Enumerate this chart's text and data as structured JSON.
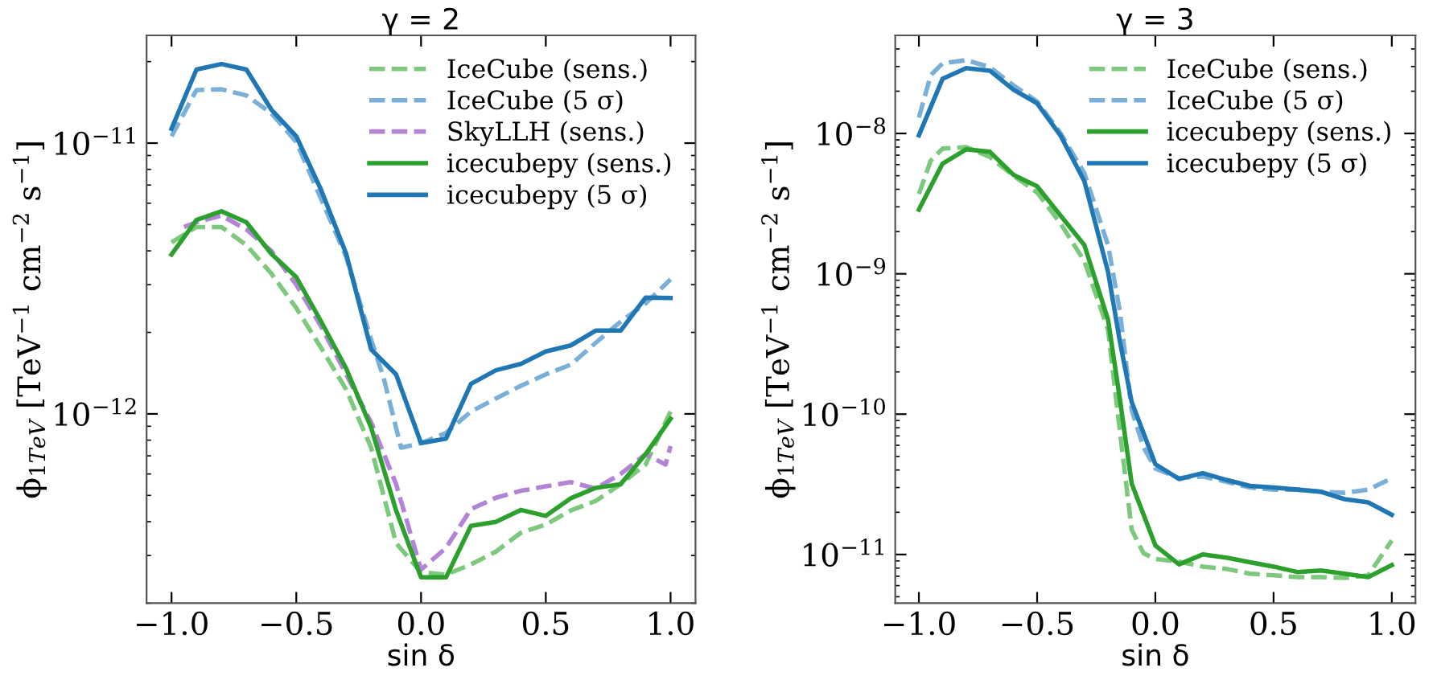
{
  "chart_data": [
    {
      "type": "line",
      "title": "γ = 2",
      "xlabel": "sin δ",
      "ylabel": "ϕ$_{1TeV}$ [TeV$^{−1}$ cm$^{−2}$ s$^{−1}$]",
      "log": "y",
      "legend": "top right",
      "grid": false,
      "xlim": [
        -1.1,
        1.1
      ],
      "ylim": [
        2e-13,
        2.5e-11
      ],
      "xticks": [
        {
          "value": -1.0,
          "label": "−1.0"
        },
        {
          "value": -0.5,
          "label": "−0.5"
        },
        {
          "value": 0.0,
          "label": "0.0"
        },
        {
          "value": 0.5,
          "label": "0.5"
        },
        {
          "value": 1.0,
          "label": "1.0"
        }
      ],
      "yticks": [
        {
          "value": 1e-12,
          "label": "10$^{−12}$"
        },
        {
          "value": 1e-11,
          "label": "10$^{−11}$"
        }
      ],
      "series": [
        {
          "name": "IceCube (sens.)",
          "color": "#7cc87c",
          "line_style": "dashed",
          "x": [
            -1.0,
            -0.9,
            -0.8,
            -0.7,
            -0.6,
            -0.5,
            -0.4,
            -0.3,
            -0.2,
            -0.1,
            0.0,
            0.1,
            0.2,
            0.3,
            0.4,
            0.5,
            0.6,
            0.7,
            0.8,
            0.9,
            1.0
          ],
          "values": [
            4.3e-12,
            4.9e-12,
            4.9e-12,
            4.2e-12,
            3.3e-12,
            2.46e-12,
            1.75e-12,
            1.23e-12,
            7.5e-13,
            3.33e-13,
            2.6e-13,
            2.55e-13,
            2.78e-13,
            3.1e-13,
            3.64e-13,
            3.9e-13,
            4.4e-13,
            4.77e-13,
            5.5e-13,
            6.5e-13,
            1.02e-12
          ]
        },
        {
          "name": "IceCube (5 σ)",
          "color": "#7ab0d8",
          "line_style": "dashed",
          "x": [
            -1.0,
            -0.9,
            -0.8,
            -0.7,
            -0.6,
            -0.5,
            -0.4,
            -0.3,
            -0.2,
            -0.15,
            -0.08,
            0.0,
            0.1,
            0.2,
            0.3,
            0.4,
            0.5,
            0.6,
            0.7,
            0.8,
            0.9,
            1.0
          ],
          "values": [
            1.06e-11,
            1.57e-11,
            1.58e-11,
            1.5e-11,
            1.29e-11,
            1.01e-11,
            6.2e-12,
            3.8e-12,
            1.88e-12,
            1.36e-12,
            7.5e-13,
            7.8e-13,
            8.5e-13,
            1.02e-12,
            1.14e-12,
            1.27e-12,
            1.4e-12,
            1.52e-12,
            1.83e-12,
            2.19e-12,
            2.56e-12,
            3.14e-12
          ]
        },
        {
          "name": "SkyLLH (sens.)",
          "color": "#b383d8",
          "line_style": "dashed",
          "x": [
            -0.95,
            -0.9,
            -0.8,
            -0.7,
            -0.6,
            -0.5,
            -0.4,
            -0.3,
            -0.2,
            -0.1,
            0.0,
            0.1,
            0.2,
            0.3,
            0.4,
            0.5,
            0.6,
            0.7,
            0.8,
            0.9,
            0.98,
            1.0
          ],
          "values": [
            4.9e-12,
            5.1e-12,
            5.4e-12,
            4.8e-12,
            4e-12,
            3e-12,
            2.1e-12,
            1.4e-12,
            9.3e-13,
            5.5e-13,
            2.66e-13,
            3.2e-13,
            4.45e-13,
            4.9e-13,
            5.2e-13,
            5.4e-13,
            5.6e-13,
            5.3e-13,
            6e-13,
            7.1e-13,
            6.5e-13,
            7.6e-13
          ]
        },
        {
          "name": "icecubepy (sens.)",
          "color": "#2ca02c",
          "line_style": "solid",
          "x": [
            -1.0,
            -0.9,
            -0.8,
            -0.7,
            -0.6,
            -0.5,
            -0.4,
            -0.3,
            -0.2,
            -0.1,
            0.0,
            0.1,
            0.2,
            0.3,
            0.4,
            0.5,
            0.6,
            0.7,
            0.8,
            0.9,
            1.0
          ],
          "values": [
            3.88e-12,
            5.2e-12,
            5.6e-12,
            5.1e-12,
            3.9e-12,
            3.2e-12,
            2.19e-12,
            1.47e-12,
            8.9e-13,
            4.4e-13,
            2.49e-13,
            2.49e-13,
            3.86e-13,
            3.99e-13,
            4.42e-13,
            4.2e-13,
            4.88e-13,
            5.33e-13,
            5.5e-13,
            7.1e-13,
            9.6e-13
          ]
        },
        {
          "name": "icecubepy (5 σ)",
          "color": "#1f77b4",
          "line_style": "solid",
          "x": [
            -1.0,
            -0.9,
            -0.8,
            -0.7,
            -0.6,
            -0.5,
            -0.4,
            -0.3,
            -0.2,
            -0.1,
            0.0,
            0.1,
            0.2,
            0.3,
            0.4,
            0.5,
            0.6,
            0.7,
            0.8,
            0.9,
            1.0
          ],
          "values": [
            1.13e-11,
            1.87e-11,
            1.96e-11,
            1.87e-11,
            1.33e-11,
            1.06e-11,
            6.7e-12,
            3.9e-12,
            1.73e-12,
            1.4e-12,
            7.8e-13,
            8.1e-13,
            1.29e-12,
            1.45e-12,
            1.53e-12,
            1.7e-12,
            1.79e-12,
            2.03e-12,
            2.03e-12,
            2.69e-12,
            2.68e-12
          ]
        }
      ]
    },
    {
      "type": "line",
      "title": "γ = 3",
      "xlabel": "sin δ",
      "ylabel": "ϕ$_{1TeV}$ [TeV$^{−1}$ cm$^{−2}$ s$^{−1}$]",
      "log": "y",
      "legend": "top right",
      "grid": false,
      "xlim": [
        -1.1,
        1.1
      ],
      "ylim": [
        4.5e-12,
        5e-08
      ],
      "xticks": [
        {
          "value": -1.0,
          "label": "−1.0"
        },
        {
          "value": -0.5,
          "label": "−0.5"
        },
        {
          "value": 0.0,
          "label": "0.0"
        },
        {
          "value": 0.5,
          "label": "0.5"
        },
        {
          "value": 1.0,
          "label": "1.0"
        }
      ],
      "yticks": [
        {
          "value": 1e-11,
          "label": "10$^{−11}$"
        },
        {
          "value": 1e-10,
          "label": "10$^{−10}$"
        },
        {
          "value": 1e-09,
          "label": "10$^{−9}$"
        },
        {
          "value": 1e-08,
          "label": "10$^{−8}$"
        }
      ],
      "series": [
        {
          "name": "IceCube (sens.)",
          "color": "#7cc87c",
          "line_style": "dashed",
          "x": [
            -1.0,
            -0.95,
            -0.9,
            -0.8,
            -0.7,
            -0.6,
            -0.5,
            -0.4,
            -0.3,
            -0.2,
            -0.15,
            -0.1,
            -0.05,
            0.0,
            0.1,
            0.2,
            0.3,
            0.4,
            0.5,
            0.6,
            0.7,
            0.8,
            0.9,
            1.0
          ],
          "values": [
            3.7e-09,
            6.4e-09,
            7.8e-09,
            8e-09,
            6.8e-09,
            5e-09,
            3.8e-09,
            2.27e-09,
            1.23e-09,
            4e-10,
            7.6e-11,
            1.5e-11,
            1.02e-11,
            9.3e-12,
            8.9e-12,
            8.2e-12,
            7.9e-12,
            7.3e-12,
            7.1e-12,
            6.9e-12,
            6.9e-12,
            6.8e-12,
            7.1e-12,
            1.26e-11
          ]
        },
        {
          "name": "IceCube (5 σ)",
          "color": "#7ab0d8",
          "line_style": "dashed",
          "x": [
            -1.0,
            -0.95,
            -0.9,
            -0.8,
            -0.7,
            -0.6,
            -0.5,
            -0.4,
            -0.3,
            -0.2,
            -0.15,
            -0.1,
            -0.05,
            0.0,
            0.1,
            0.2,
            0.3,
            0.4,
            0.5,
            0.6,
            0.7,
            0.8,
            0.9,
            1.0
          ],
          "values": [
            1.3e-08,
            2.6e-08,
            3.16e-08,
            3.33e-08,
            2.97e-08,
            2.2e-08,
            1.69e-08,
            1e-08,
            5.2e-09,
            1.6e-09,
            5.4e-10,
            1.07e-10,
            5.8e-11,
            4.1e-11,
            3.5e-11,
            3.6e-11,
            3.3e-11,
            3e-11,
            2.9e-11,
            2.9e-11,
            2.8e-11,
            2.75e-11,
            2.9e-11,
            3.5e-11
          ]
        },
        {
          "name": "icecubepy (sens.)",
          "color": "#2ca02c",
          "line_style": "solid",
          "x": [
            -1.0,
            -0.9,
            -0.8,
            -0.7,
            -0.6,
            -0.5,
            -0.4,
            -0.3,
            -0.2,
            -0.15,
            -0.1,
            0.0,
            0.1,
            0.2,
            0.3,
            0.4,
            0.5,
            0.6,
            0.7,
            0.8,
            0.9,
            1.0
          ],
          "values": [
            2.87e-09,
            6.1e-09,
            7.7e-09,
            7.4e-09,
            5.07e-09,
            4.2e-09,
            2.59e-09,
            1.6e-09,
            4.7e-10,
            1.28e-10,
            3.2e-11,
            1.16e-11,
            8.5e-12,
            1e-11,
            9.5e-12,
            8.8e-12,
            8.2e-12,
            7.5e-12,
            7.7e-12,
            7.3e-12,
            6.9e-12,
            8.4e-12
          ]
        },
        {
          "name": "icecubepy (5 σ)",
          "color": "#1f77b4",
          "line_style": "solid",
          "x": [
            -1.0,
            -0.9,
            -0.8,
            -0.7,
            -0.6,
            -0.5,
            -0.4,
            -0.3,
            -0.2,
            -0.15,
            -0.1,
            0.0,
            0.1,
            0.2,
            0.3,
            0.4,
            0.5,
            0.6,
            0.7,
            0.8,
            0.9,
            1.0
          ],
          "values": [
            9.7e-09,
            2.45e-08,
            2.92e-08,
            2.8e-08,
            2.05e-08,
            1.64e-08,
            9.6e-09,
            4.56e-09,
            1.03e-09,
            3.3e-10,
            1.22e-10,
            4.4e-11,
            3.45e-11,
            3.8e-11,
            3.4e-11,
            3.08e-11,
            3e-11,
            2.9e-11,
            2.8e-11,
            2.48e-11,
            2.35e-11,
            1.92e-11
          ]
        }
      ]
    }
  ]
}
